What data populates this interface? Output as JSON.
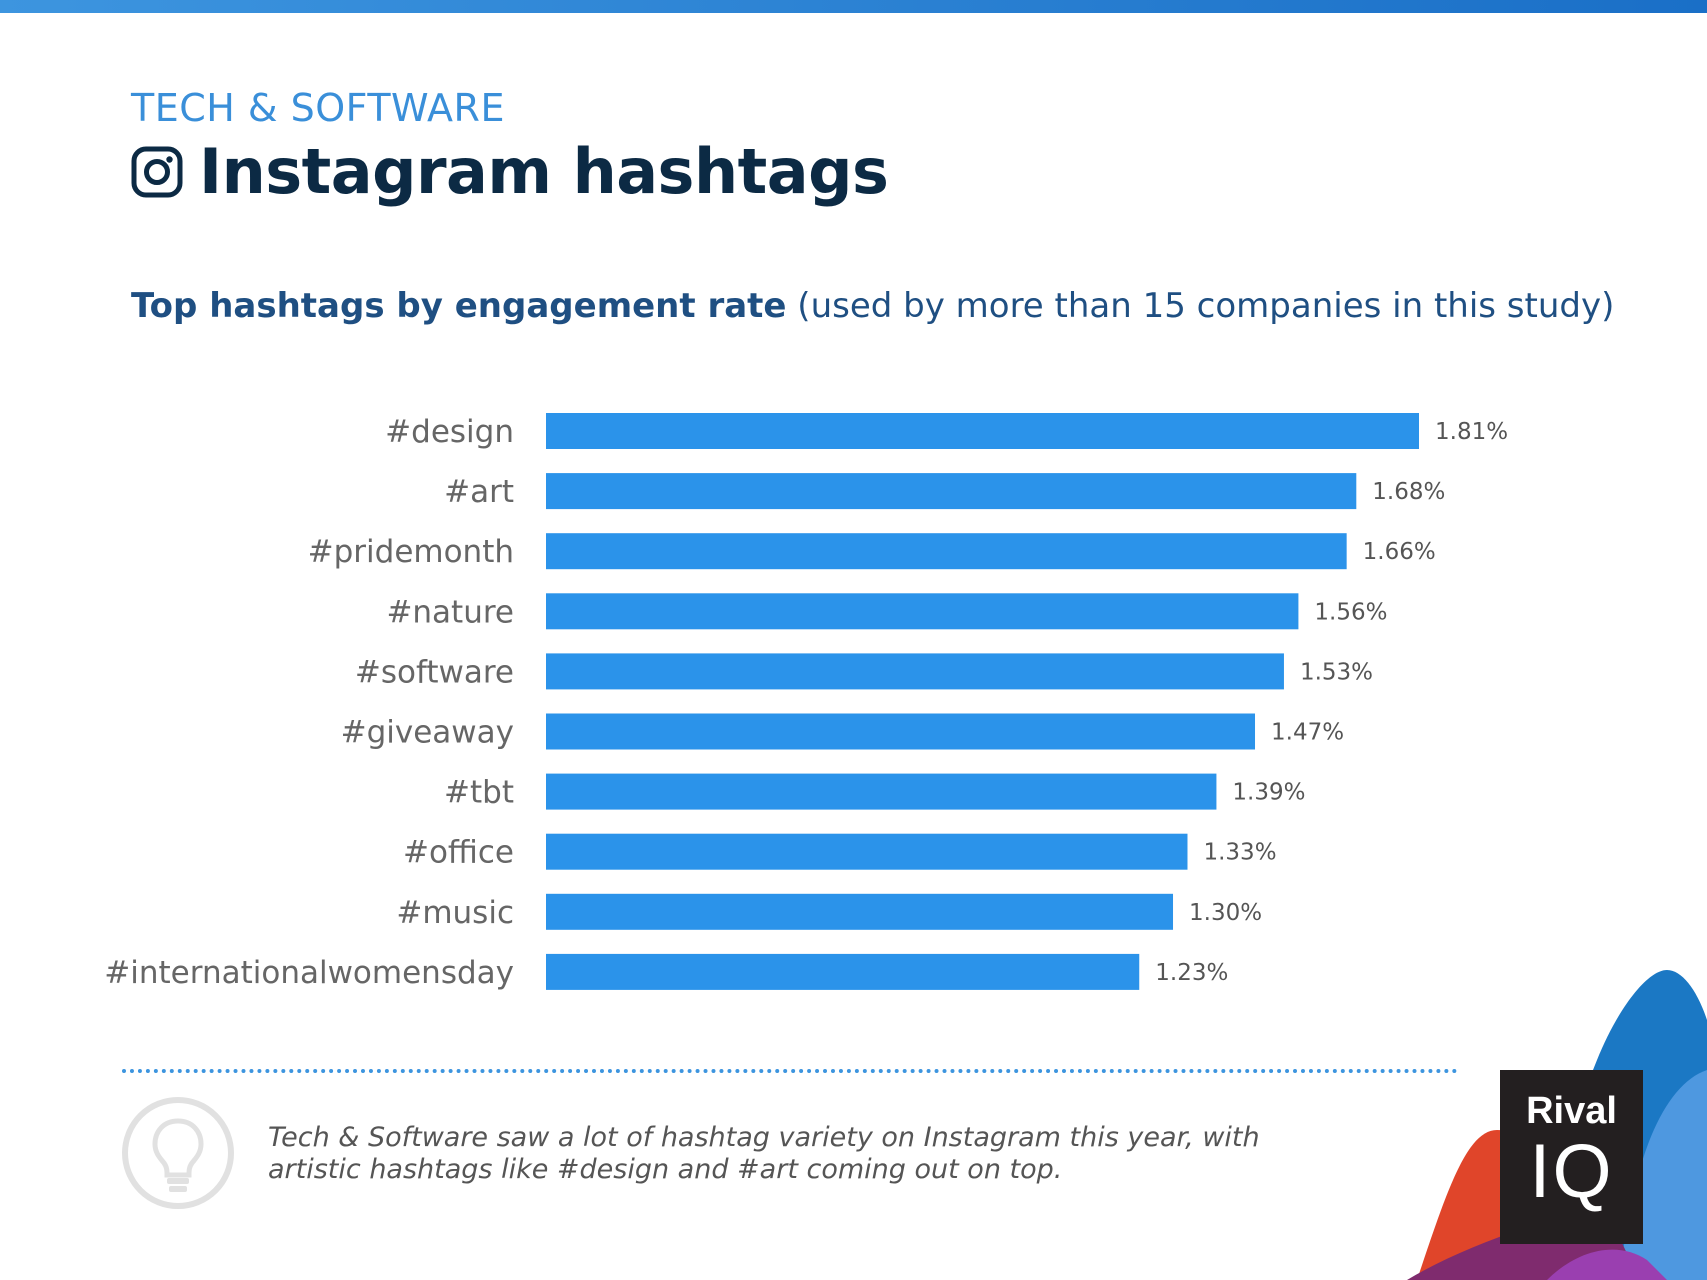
{
  "header": {
    "category": "TECH & SOFTWARE",
    "title": "Instagram hashtags",
    "subtitle_bold": "Top hashtags by engagement rate",
    "subtitle_rest": " (used by more than 15 companies in this study)"
  },
  "chart_data": {
    "type": "bar",
    "orientation": "horizontal",
    "title": "Top hashtags by engagement rate",
    "categories": [
      "#design",
      "#art",
      "#pridemonth",
      "#nature",
      "#software",
      "#giveaway",
      "#tbt",
      "#office",
      "#music",
      "#internationalwomensday"
    ],
    "values": [
      1.81,
      1.68,
      1.66,
      1.56,
      1.53,
      1.47,
      1.39,
      1.33,
      1.3,
      1.23
    ],
    "value_labels": [
      "1.81%",
      "1.68%",
      "1.66%",
      "1.56%",
      "1.53%",
      "1.47%",
      "1.39%",
      "1.33%",
      "1.30%",
      "1.23%"
    ],
    "xlim": [
      0,
      1.81
    ],
    "xlabel": "",
    "ylabel": "",
    "bar_color": "#2b93ea",
    "grid": false
  },
  "insight": {
    "text": "Tech & Software saw a lot of hashtag variety on Instagram this year, with artistic hashtags like #design and #art coming out on top.",
    "icon": "lightbulb-icon"
  },
  "logo": {
    "line1": "Rival",
    "line2": "IQ"
  },
  "colors": {
    "accent": "#3a8fd9",
    "title": "#0c2a44",
    "bar": "#2b93ea"
  }
}
